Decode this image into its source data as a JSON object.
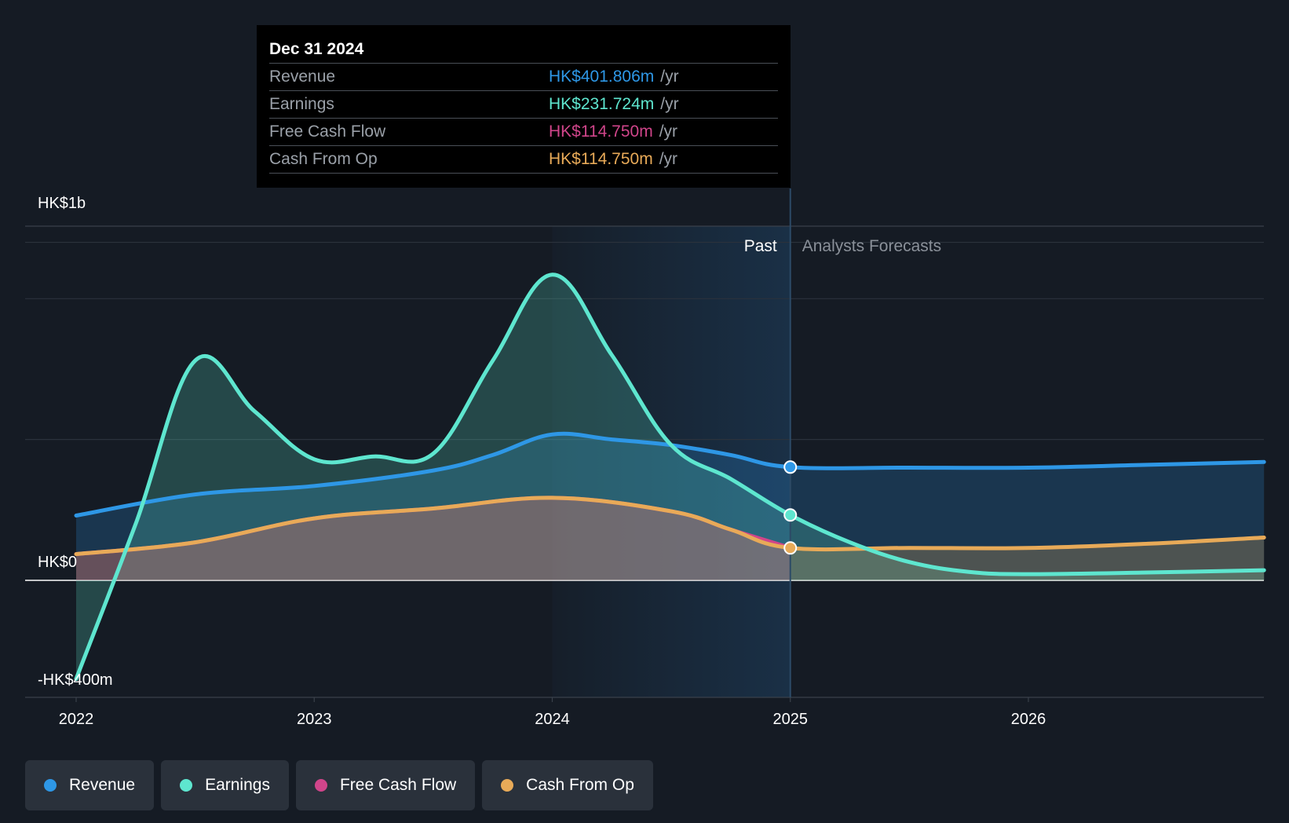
{
  "colors": {
    "background": "#151b24",
    "revenue": "#2e97e6",
    "earnings": "#5ee6cf",
    "free_cash_flow": "#d0458a",
    "cash_from_op": "#e8aa58",
    "past_highlight": "#1a3148"
  },
  "tooltip": {
    "date": "Dec 31 2024",
    "rows": [
      {
        "label": "Revenue",
        "value": "HK$401.806m",
        "unit": "/yr",
        "color": "#2e97e6"
      },
      {
        "label": "Earnings",
        "value": "HK$231.724m",
        "unit": "/yr",
        "color": "#5ee6cf"
      },
      {
        "label": "Free Cash Flow",
        "value": "HK$114.750m",
        "unit": "/yr",
        "color": "#d0458a"
      },
      {
        "label": "Cash From Op",
        "value": "HK$114.750m",
        "unit": "/yr",
        "color": "#e8aa58"
      }
    ]
  },
  "periods": {
    "past_label": "Past",
    "forecast_label": "Analysts Forecasts"
  },
  "legend": [
    {
      "label": "Revenue",
      "color": "#2e97e6"
    },
    {
      "label": "Earnings",
      "color": "#5ee6cf"
    },
    {
      "label": "Free Cash Flow",
      "color": "#d0458a"
    },
    {
      "label": "Cash From Op",
      "color": "#e8aa58"
    }
  ],
  "chart_data": {
    "type": "area",
    "title": "",
    "xlabel": "",
    "ylabel": "",
    "x_ticks": [
      "2022",
      "2023",
      "2024",
      "2025",
      "2026"
    ],
    "x_range": [
      2021.997,
      2026.99
    ],
    "y_ticks": [
      "HK$1b",
      "HK$0",
      "-HK$400m"
    ],
    "y_tick_values": [
      1200,
      0,
      -400
    ],
    "ylim": [
      -400,
      1200
    ],
    "grid": true,
    "past_end": 2025.0,
    "highlight_start": 2024.0,
    "series": [
      {
        "name": "Revenue",
        "key": "revenue",
        "points": [
          [
            2022.0,
            230
          ],
          [
            2022.5,
            305
          ],
          [
            2023.0,
            335
          ],
          [
            2023.5,
            390
          ],
          [
            2023.75,
            445
          ],
          [
            2024.0,
            518
          ],
          [
            2024.25,
            500
          ],
          [
            2024.5,
            480
          ],
          [
            2024.75,
            445
          ],
          [
            2025.0,
            402
          ],
          [
            2025.5,
            400
          ],
          [
            2026.0,
            400
          ],
          [
            2026.5,
            410
          ],
          [
            2026.99,
            420
          ]
        ]
      },
      {
        "name": "Earnings",
        "key": "earnings",
        "points": [
          [
            2022.0,
            -350
          ],
          [
            2022.25,
            200
          ],
          [
            2022.5,
            780
          ],
          [
            2022.75,
            600
          ],
          [
            2023.0,
            430
          ],
          [
            2023.25,
            440
          ],
          [
            2023.5,
            450
          ],
          [
            2023.75,
            780
          ],
          [
            2024.0,
            1085
          ],
          [
            2024.25,
            800
          ],
          [
            2024.5,
            480
          ],
          [
            2024.75,
            360
          ],
          [
            2025.0,
            232
          ],
          [
            2025.25,
            135
          ],
          [
            2025.5,
            65
          ],
          [
            2025.75,
            30
          ],
          [
            2026.0,
            22
          ],
          [
            2026.5,
            28
          ],
          [
            2026.99,
            36
          ]
        ]
      },
      {
        "name": "Free Cash Flow",
        "key": "free_cash_flow",
        "points": [
          [
            2022.0,
            93
          ],
          [
            2022.5,
            135
          ],
          [
            2023.0,
            220
          ],
          [
            2023.5,
            255
          ],
          [
            2024.0,
            293
          ],
          [
            2024.5,
            245
          ],
          [
            2024.75,
            180
          ],
          [
            2025.0,
            115
          ]
        ]
      },
      {
        "name": "Cash From Op",
        "key": "cash_from_op",
        "points": [
          [
            2022.0,
            93
          ],
          [
            2022.5,
            135
          ],
          [
            2023.0,
            220
          ],
          [
            2023.5,
            255
          ],
          [
            2024.0,
            293
          ],
          [
            2024.5,
            245
          ],
          [
            2024.75,
            180
          ],
          [
            2025.0,
            115
          ],
          [
            2025.5,
            115
          ],
          [
            2026.0,
            115
          ],
          [
            2026.5,
            130
          ],
          [
            2026.99,
            152
          ]
        ]
      }
    ]
  }
}
